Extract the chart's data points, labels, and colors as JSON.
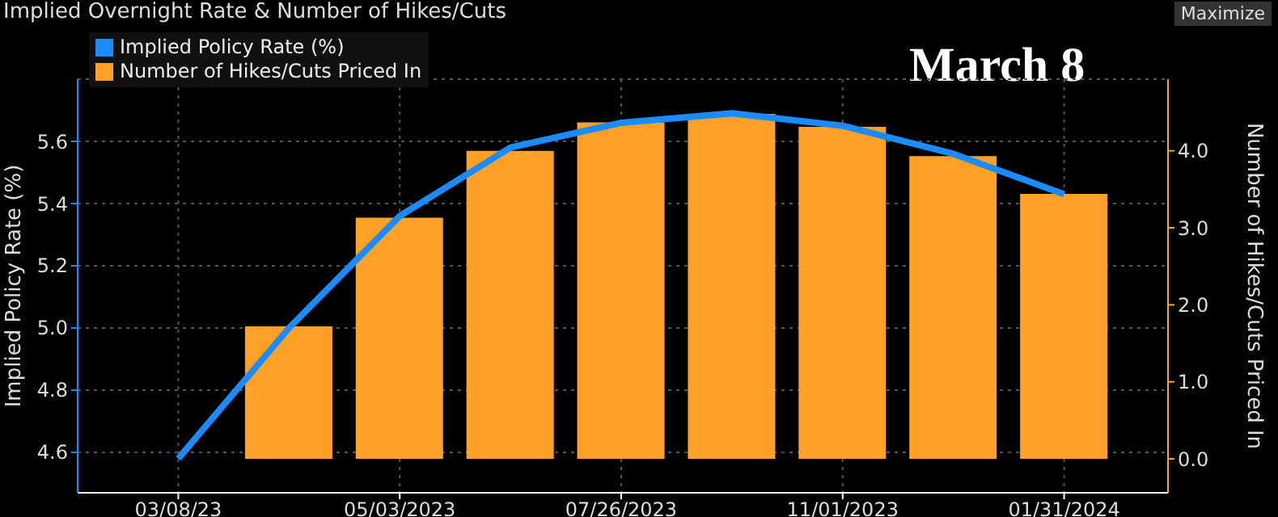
{
  "chart_data": {
    "type": "bar",
    "title": "Implied Overnight Rate & Number of Hikes/Cuts",
    "ylabel": "Implied Policy Rate (%)",
    "y2label": "Number of Hikes/Cuts Priced In",
    "annotations": [
      "March 8",
      "Maximize"
    ],
    "categories": [
      "03/08/23",
      null,
      "05/03/2023",
      null,
      "07/26/2023",
      null,
      "11/01/2023",
      null,
      "01/31/2024"
    ],
    "series": [
      {
        "name": "Implied Policy Rate (%)",
        "type": "line",
        "color": "#1a8cff",
        "values": [
          4.58,
          5.0,
          5.36,
          5.58,
          5.66,
          5.69,
          5.65,
          5.56,
          5.43
        ]
      },
      {
        "name": "Number of Hikes/Cuts Priced In",
        "axis": "y2",
        "color": "#ffa126",
        "values": [
          0,
          1.72,
          3.13,
          4.0,
          4.37,
          4.48,
          4.31,
          3.93,
          3.44
        ]
      }
    ],
    "ylim": [
      4.47,
      5.8
    ],
    "yticks": [
      4.6,
      4.8,
      {
        "value": 5,
        "label": "5.0"
      },
      5.2,
      5.4,
      5.6
    ],
    "y2lim": [
      -0.44,
      4.93
    ],
    "y2ticks": [
      {
        "value": 0,
        "label": "0.0"
      },
      {
        "value": 1,
        "label": "1.0"
      },
      {
        "value": 2,
        "label": "2.0"
      },
      {
        "value": 3,
        "label": "3.0"
      },
      {
        "value": 4,
        "label": "4.0"
      }
    ],
    "grid": true,
    "legend": "top left",
    "marker": "none"
  }
}
